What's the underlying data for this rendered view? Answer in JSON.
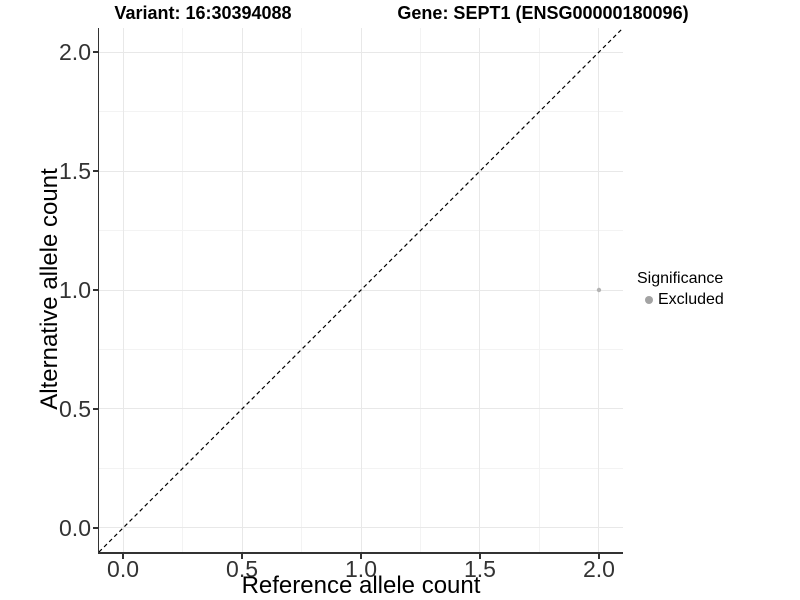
{
  "chart_data": {
    "type": "scatter",
    "title_variant": "Variant: 16:30394088",
    "title_gene": "Gene: SEPT1 (ENSG00000180096)",
    "xlabel": "Reference allele count",
    "ylabel": "Alternative allele count",
    "xlim": [
      -0.101,
      2.101
    ],
    "ylim": [
      -0.101,
      2.101
    ],
    "x_major_ticks": [
      0.0,
      0.5,
      1.0,
      1.5,
      2.0
    ],
    "x_tick_labels": [
      "0.0",
      "0.5",
      "1.0",
      "1.5",
      "2.0"
    ],
    "y_major_ticks": [
      0.0,
      0.5,
      1.0,
      1.5,
      2.0
    ],
    "y_tick_labels": [
      "0.0",
      "0.5",
      "1.0",
      "1.5",
      "2.0"
    ],
    "minor_ticks": [
      0.25,
      0.75,
      1.25,
      1.75
    ],
    "grid": true,
    "identity_line": {
      "style": "dashed",
      "slope": 1,
      "intercept": 0,
      "color": "#000000"
    },
    "series": [
      {
        "name": "Excluded",
        "color": "#b3b3b3",
        "point_radius": 2.2,
        "points": [
          {
            "x": 2.0,
            "y": 1.0
          }
        ]
      }
    ],
    "legend": {
      "title": "Significance",
      "position": "right",
      "entries": [
        {
          "label": "Excluded",
          "color": "#a3a3a3"
        }
      ]
    }
  },
  "colors": {
    "grid_major": "#e8e8e8",
    "grid_minor": "#f3f3f3",
    "axis_line": "#333333",
    "tick_label": "#333333",
    "background": "#ffffff"
  }
}
